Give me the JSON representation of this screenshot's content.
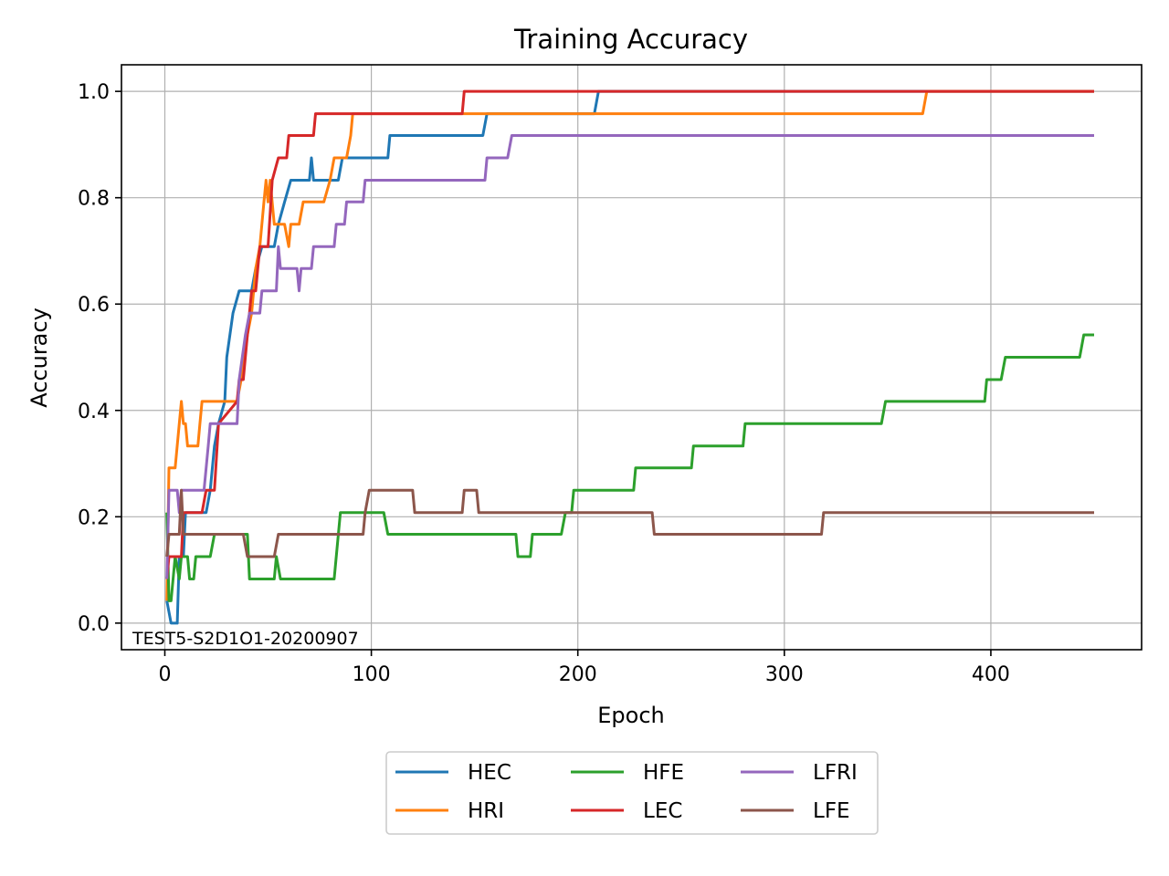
{
  "chart_data": {
    "type": "line",
    "title": "Training Accuracy",
    "xlabel": "Epoch",
    "ylabel": "Accuracy",
    "annotation": "TEST5-S2D1O1-20200907",
    "xlim": [
      -21,
      473
    ],
    "ylim": [
      -0.05,
      1.05
    ],
    "xticks": [
      0,
      100,
      200,
      300,
      400
    ],
    "xtick_labels": [
      "0",
      "100",
      "200",
      "300",
      "400"
    ],
    "yticks": [
      0.0,
      0.2,
      0.4,
      0.6,
      0.8,
      1.0
    ],
    "ytick_labels": [
      "0.0",
      "0.2",
      "0.4",
      "0.6",
      "0.8",
      "1.0"
    ],
    "grid": true,
    "legend": {
      "placement": "below-center",
      "columns": 3
    },
    "series": [
      {
        "name": "HEC",
        "color": "#1f77b4",
        "points": [
          [
            1,
            0.042
          ],
          [
            3,
            0.0
          ],
          [
            6,
            0.0
          ],
          [
            7,
            0.125
          ],
          [
            9,
            0.125
          ],
          [
            10,
            0.208
          ],
          [
            17,
            0.208
          ],
          [
            19,
            0.208
          ],
          [
            20,
            0.208
          ],
          [
            22,
            0.25
          ],
          [
            24,
            0.333
          ],
          [
            26,
            0.375
          ],
          [
            29,
            0.417
          ],
          [
            30,
            0.5
          ],
          [
            33,
            0.583
          ],
          [
            36,
            0.625
          ],
          [
            42,
            0.625
          ],
          [
            44,
            0.667
          ],
          [
            47,
            0.708
          ],
          [
            53,
            0.708
          ],
          [
            55,
            0.75
          ],
          [
            58,
            0.792
          ],
          [
            61,
            0.833
          ],
          [
            70,
            0.833
          ],
          [
            71,
            0.875
          ],
          [
            72,
            0.833
          ],
          [
            84,
            0.833
          ],
          [
            86,
            0.875
          ],
          [
            108,
            0.875
          ],
          [
            109,
            0.917
          ],
          [
            154,
            0.917
          ],
          [
            156,
            0.958
          ],
          [
            208,
            0.958
          ],
          [
            210,
            1.0
          ],
          [
            450,
            1.0
          ]
        ]
      },
      {
        "name": "HRI",
        "color": "#ff7f0e",
        "points": [
          [
            1,
            0.042
          ],
          [
            2,
            0.292
          ],
          [
            5,
            0.292
          ],
          [
            7,
            0.375
          ],
          [
            8,
            0.417
          ],
          [
            9,
            0.375
          ],
          [
            10,
            0.375
          ],
          [
            11,
            0.333
          ],
          [
            16,
            0.333
          ],
          [
            17,
            0.375
          ],
          [
            18,
            0.417
          ],
          [
            35,
            0.417
          ],
          [
            37,
            0.458
          ],
          [
            40,
            0.542
          ],
          [
            42,
            0.583
          ],
          [
            44,
            0.667
          ],
          [
            46,
            0.708
          ],
          [
            48,
            0.792
          ],
          [
            49,
            0.833
          ],
          [
            50,
            0.792
          ],
          [
            51,
            0.833
          ],
          [
            53,
            0.75
          ],
          [
            58,
            0.75
          ],
          [
            60,
            0.708
          ],
          [
            61,
            0.75
          ],
          [
            65,
            0.75
          ],
          [
            67,
            0.792
          ],
          [
            75,
            0.792
          ],
          [
            77,
            0.792
          ],
          [
            80,
            0.833
          ],
          [
            82,
            0.875
          ],
          [
            88,
            0.875
          ],
          [
            90,
            0.917
          ],
          [
            91,
            0.958
          ],
          [
            367,
            0.958
          ],
          [
            369,
            1.0
          ],
          [
            450,
            1.0
          ]
        ]
      },
      {
        "name": "HFE",
        "color": "#2ca02c",
        "points": [
          [
            1,
            0.208
          ],
          [
            2,
            0.042
          ],
          [
            3,
            0.042
          ],
          [
            5,
            0.125
          ],
          [
            7,
            0.083
          ],
          [
            8,
            0.125
          ],
          [
            11,
            0.125
          ],
          [
            12,
            0.083
          ],
          [
            14,
            0.083
          ],
          [
            15,
            0.125
          ],
          [
            22,
            0.125
          ],
          [
            24,
            0.167
          ],
          [
            40,
            0.167
          ],
          [
            41,
            0.083
          ],
          [
            53,
            0.083
          ],
          [
            54,
            0.125
          ],
          [
            56,
            0.083
          ],
          [
            82,
            0.083
          ],
          [
            85,
            0.208
          ],
          [
            106,
            0.208
          ],
          [
            108,
            0.167
          ],
          [
            170,
            0.167
          ],
          [
            171,
            0.125
          ],
          [
            177,
            0.125
          ],
          [
            178,
            0.167
          ],
          [
            192,
            0.167
          ],
          [
            194,
            0.208
          ],
          [
            197,
            0.208
          ],
          [
            198,
            0.25
          ],
          [
            227,
            0.25
          ],
          [
            228,
            0.292
          ],
          [
            255,
            0.292
          ],
          [
            256,
            0.333
          ],
          [
            280,
            0.333
          ],
          [
            281,
            0.375
          ],
          [
            347,
            0.375
          ],
          [
            349,
            0.417
          ],
          [
            397,
            0.417
          ],
          [
            398,
            0.458
          ],
          [
            405,
            0.458
          ],
          [
            407,
            0.5
          ],
          [
            443,
            0.5
          ],
          [
            445,
            0.542
          ],
          [
            450,
            0.542
          ]
        ]
      },
      {
        "name": "LEC",
        "color": "#d62728",
        "points": [
          [
            1,
            0.083
          ],
          [
            2,
            0.125
          ],
          [
            8,
            0.125
          ],
          [
            9,
            0.208
          ],
          [
            18,
            0.208
          ],
          [
            20,
            0.25
          ],
          [
            24,
            0.25
          ],
          [
            26,
            0.375
          ],
          [
            35,
            0.417
          ],
          [
            36,
            0.458
          ],
          [
            38,
            0.458
          ],
          [
            40,
            0.542
          ],
          [
            42,
            0.625
          ],
          [
            44,
            0.625
          ],
          [
            46,
            0.708
          ],
          [
            50,
            0.708
          ],
          [
            52,
            0.833
          ],
          [
            55,
            0.875
          ],
          [
            59,
            0.875
          ],
          [
            60,
            0.917
          ],
          [
            72,
            0.917
          ],
          [
            73,
            0.958
          ],
          [
            144,
            0.958
          ],
          [
            145,
            1.0
          ],
          [
            450,
            1.0
          ]
        ]
      },
      {
        "name": "LFRI",
        "color": "#9467bd",
        "points": [
          [
            1,
            0.083
          ],
          [
            2,
            0.25
          ],
          [
            6,
            0.25
          ],
          [
            7,
            0.208
          ],
          [
            8,
            0.25
          ],
          [
            19,
            0.25
          ],
          [
            21,
            0.333
          ],
          [
            22,
            0.375
          ],
          [
            35,
            0.375
          ],
          [
            36,
            0.458
          ],
          [
            39,
            0.542
          ],
          [
            41,
            0.583
          ],
          [
            46,
            0.583
          ],
          [
            47,
            0.625
          ],
          [
            54,
            0.625
          ],
          [
            55,
            0.708
          ],
          [
            56,
            0.667
          ],
          [
            64,
            0.667
          ],
          [
            65,
            0.625
          ],
          [
            66,
            0.667
          ],
          [
            71,
            0.667
          ],
          [
            72,
            0.708
          ],
          [
            82,
            0.708
          ],
          [
            83,
            0.75
          ],
          [
            87,
            0.75
          ],
          [
            88,
            0.792
          ],
          [
            96,
            0.792
          ],
          [
            97,
            0.833
          ],
          [
            155,
            0.833
          ],
          [
            156,
            0.875
          ],
          [
            166,
            0.875
          ],
          [
            168,
            0.917
          ],
          [
            450,
            0.917
          ]
        ]
      },
      {
        "name": "LFE",
        "color": "#8c564b",
        "points": [
          [
            1,
            0.125
          ],
          [
            2,
            0.167
          ],
          [
            7,
            0.167
          ],
          [
            8,
            0.25
          ],
          [
            9,
            0.167
          ],
          [
            38,
            0.167
          ],
          [
            40,
            0.125
          ],
          [
            53,
            0.125
          ],
          [
            55,
            0.167
          ],
          [
            96,
            0.167
          ],
          [
            97,
            0.208
          ],
          [
            99,
            0.25
          ],
          [
            120,
            0.25
          ],
          [
            121,
            0.208
          ],
          [
            144,
            0.208
          ],
          [
            145,
            0.25
          ],
          [
            151,
            0.25
          ],
          [
            152,
            0.208
          ],
          [
            236,
            0.208
          ],
          [
            237,
            0.167
          ],
          [
            318,
            0.167
          ],
          [
            319,
            0.208
          ],
          [
            450,
            0.208
          ]
        ]
      }
    ]
  }
}
